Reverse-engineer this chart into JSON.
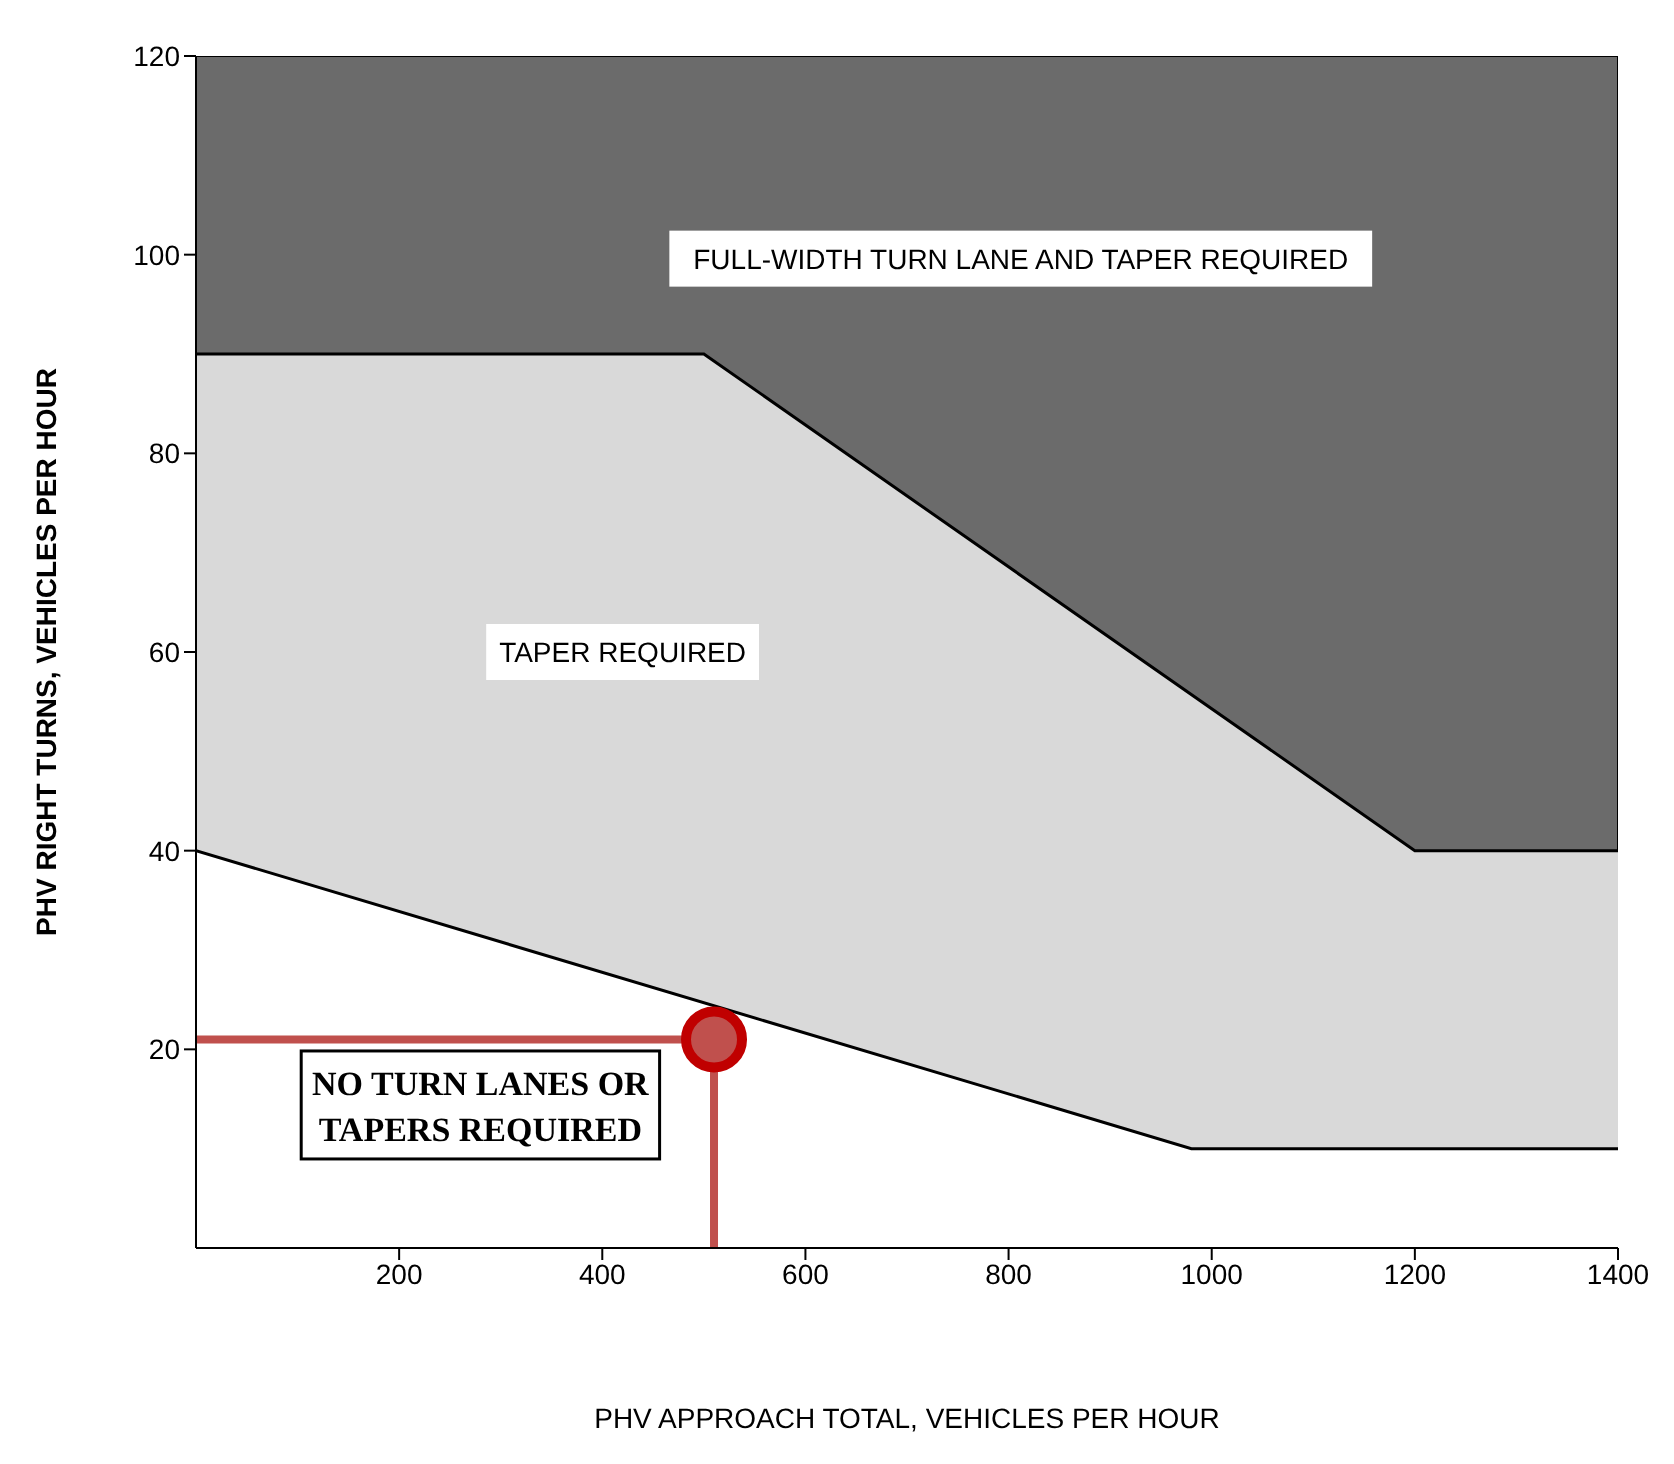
{
  "chart_data": {
    "type": "area",
    "xlabel": "PHV APPROACH TOTAL, VEHICLES PER HOUR",
    "ylabel": "PHV RIGHT TURNS, VEHICLES PER HOUR",
    "xlim": [
      0,
      1400
    ],
    "xticks": [
      200,
      400,
      600,
      800,
      1000,
      1200,
      1400
    ],
    "ylim": [
      0,
      120
    ],
    "yticks": [
      20,
      40,
      60,
      80,
      100,
      120
    ],
    "bands": [
      {
        "axis": "y",
        "from": 0,
        "to": 120,
        "color": "#6b6b6b"
      }
    ],
    "series": [
      {
        "color": "#d9d9d9",
        "x": [
          0,
          500,
          1200,
          1400
        ],
        "values": [
          90,
          90,
          40,
          40
        ]
      },
      {
        "color": "#ffffff",
        "x": [
          0,
          980,
          1400
        ],
        "values": [
          40,
          10,
          10
        ]
      },
      {
        "type": "line",
        "color": "#c0504d",
        "x": [
          0,
          510,
          510
        ],
        "values": [
          21,
          21,
          0
        ]
      },
      {
        "type": "scatter",
        "color": "#c0504d",
        "x": [
          510
        ],
        "values": [
          21
        ]
      }
    ],
    "annotations": [
      "FULL-WIDTH TURN LANE AND TAPER REQUIRED",
      "TAPER REQUIRED",
      "NO TURN LANES OR TAPERS REQUIRED"
    ]
  }
}
